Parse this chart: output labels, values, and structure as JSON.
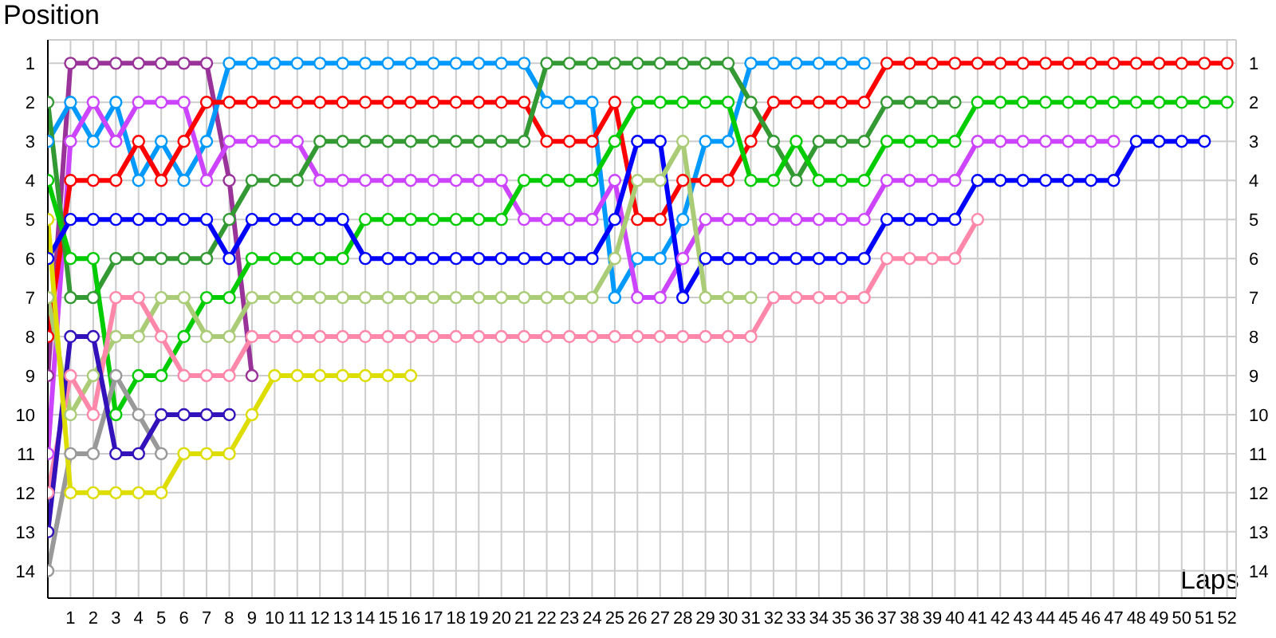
{
  "chart_data": {
    "type": "line",
    "xlabel": "Laps",
    "ylabel": "Position",
    "x": [
      0,
      1,
      2,
      3,
      4,
      5,
      6,
      7,
      8,
      9,
      10,
      11,
      12,
      13,
      14,
      15,
      16,
      17,
      18,
      19,
      20,
      21,
      22,
      23,
      24,
      25,
      26,
      27,
      28,
      29,
      30,
      31,
      32,
      33,
      34,
      35,
      36,
      37,
      38,
      39,
      40,
      41,
      42,
      43,
      44,
      45,
      46,
      47,
      48,
      49,
      50,
      51,
      52
    ],
    "xlim": [
      0,
      52.4
    ],
    "xticks": [
      1,
      2,
      3,
      4,
      5,
      6,
      7,
      8,
      9,
      10,
      11,
      12,
      13,
      14,
      15,
      16,
      17,
      18,
      19,
      20,
      21,
      22,
      23,
      24,
      25,
      26,
      27,
      28,
      29,
      30,
      31,
      32,
      33,
      34,
      35,
      36,
      37,
      38,
      39,
      40,
      41,
      42,
      43,
      44,
      45,
      46,
      47,
      48,
      49,
      50,
      51,
      52
    ],
    "ylim": [
      14.7,
      0.4
    ],
    "yticks": [
      1,
      2,
      3,
      4,
      5,
      6,
      7,
      8,
      9,
      10,
      11,
      12,
      13,
      14
    ],
    "y2lim": [
      14.7,
      0.4
    ],
    "y2ticks": [
      1,
      2,
      3,
      4,
      5,
      6,
      7,
      8,
      9,
      10,
      11,
      12,
      13,
      14
    ],
    "grid": true,
    "marker": "circle",
    "line_style": "solid",
    "series": [
      {
        "color": "#993399",
        "values": [
          9,
          1,
          1,
          1,
          1,
          1,
          1,
          1,
          4,
          9,
          null,
          null,
          null,
          null,
          null,
          null,
          null,
          null,
          null,
          null,
          null,
          null,
          null,
          null,
          null,
          null,
          null,
          null,
          null,
          null,
          null,
          null,
          null,
          null,
          null,
          null,
          null,
          null,
          null,
          null,
          null,
          null,
          null,
          null,
          null,
          null,
          null,
          null,
          null,
          null,
          null,
          null,
          null
        ]
      },
      {
        "color": "#0099ff",
        "values": [
          3,
          2,
          3,
          2,
          4,
          3,
          4,
          3,
          1,
          1,
          1,
          1,
          1,
          1,
          1,
          1,
          1,
          1,
          1,
          1,
          1,
          1,
          2,
          2,
          2,
          7,
          6,
          6,
          5,
          3,
          3,
          1,
          1,
          1,
          1,
          1,
          1,
          null,
          null,
          null,
          null,
          null,
          null,
          null,
          null,
          null,
          null,
          null,
          null,
          null,
          null,
          null,
          null
        ]
      },
      {
        "color": "#cc44ff",
        "values": [
          11,
          3,
          2,
          3,
          2,
          2,
          2,
          4,
          3,
          3,
          3,
          3,
          4,
          4,
          4,
          4,
          4,
          4,
          4,
          4,
          4,
          5,
          5,
          5,
          5,
          4,
          7,
          7,
          6,
          5,
          5,
          5,
          5,
          5,
          5,
          5,
          5,
          4,
          4,
          4,
          4,
          3,
          3,
          3,
          3,
          3,
          3,
          3,
          null,
          null,
          null,
          null,
          null
        ]
      },
      {
        "color": "#ff0000",
        "values": [
          8,
          4,
          4,
          4,
          3,
          4,
          3,
          2,
          2,
          2,
          2,
          2,
          2,
          2,
          2,
          2,
          2,
          2,
          2,
          2,
          2,
          2,
          3,
          3,
          3,
          2,
          5,
          5,
          4,
          4,
          4,
          3,
          2,
          2,
          2,
          2,
          2,
          1,
          1,
          1,
          1,
          1,
          1,
          1,
          1,
          1,
          1,
          1,
          1,
          1,
          1,
          1,
          1
        ]
      },
      {
        "color": "#339933",
        "values": [
          2,
          7,
          7,
          6,
          6,
          6,
          6,
          6,
          5,
          4,
          4,
          4,
          3,
          3,
          3,
          3,
          3,
          3,
          3,
          3,
          3,
          3,
          1,
          1,
          1,
          1,
          1,
          1,
          1,
          1,
          1,
          2,
          3,
          4,
          3,
          3,
          3,
          2,
          2,
          2,
          2,
          null,
          null,
          null,
          null,
          null,
          null,
          null,
          null,
          null,
          null,
          null,
          null
        ]
      },
      {
        "color": "#00cc00",
        "values": [
          4,
          6,
          6,
          10,
          9,
          9,
          8,
          7,
          7,
          6,
          6,
          6,
          6,
          6,
          5,
          5,
          5,
          5,
          5,
          5,
          5,
          4,
          4,
          4,
          4,
          3,
          2,
          2,
          2,
          2,
          2,
          4,
          4,
          3,
          4,
          4,
          4,
          3,
          3,
          3,
          3,
          2,
          2,
          2,
          2,
          2,
          2,
          2,
          2,
          2,
          2,
          2,
          2
        ]
      },
      {
        "color": "#0000ff",
        "values": [
          6,
          5,
          5,
          5,
          5,
          5,
          5,
          5,
          6,
          5,
          5,
          5,
          5,
          5,
          6,
          6,
          6,
          6,
          6,
          6,
          6,
          6,
          6,
          6,
          6,
          5,
          3,
          3,
          7,
          6,
          6,
          6,
          6,
          6,
          6,
          6,
          6,
          5,
          5,
          5,
          5,
          4,
          4,
          4,
          4,
          4,
          4,
          4,
          3,
          3,
          3,
          3,
          null
        ]
      },
      {
        "color": "#aacc77",
        "values": [
          7,
          10,
          9,
          8,
          8,
          7,
          7,
          8,
          8,
          7,
          7,
          7,
          7,
          7,
          7,
          7,
          7,
          7,
          7,
          7,
          7,
          7,
          7,
          7,
          7,
          6,
          4,
          4,
          3,
          7,
          7,
          7,
          null,
          null,
          null,
          null,
          null,
          null,
          null,
          null,
          null,
          null,
          null,
          null,
          null,
          null,
          null,
          null,
          null,
          null,
          null,
          null,
          null
        ]
      },
      {
        "color": "#ff88aa",
        "values": [
          12,
          9,
          10,
          7,
          7,
          8,
          9,
          9,
          9,
          8,
          8,
          8,
          8,
          8,
          8,
          8,
          8,
          8,
          8,
          8,
          8,
          8,
          8,
          8,
          8,
          8,
          8,
          8,
          8,
          8,
          8,
          8,
          7,
          7,
          7,
          7,
          7,
          6,
          6,
          6,
          6,
          5,
          null,
          null,
          null,
          null,
          null,
          null,
          null,
          null,
          null,
          null,
          null
        ]
      },
      {
        "color": "#999999",
        "values": [
          14,
          11,
          11,
          9,
          10,
          11,
          null,
          null,
          null,
          null,
          null,
          null,
          null,
          null,
          null,
          null,
          null,
          null,
          null,
          null,
          null,
          null,
          null,
          null,
          null,
          null,
          null,
          null,
          null,
          null,
          null,
          null,
          null,
          null,
          null,
          null,
          null,
          null,
          null,
          null,
          null,
          null,
          null,
          null,
          null,
          null,
          null,
          null,
          null,
          null,
          null,
          null,
          null
        ]
      },
      {
        "color": "#3311bb",
        "values": [
          13,
          8,
          8,
          11,
          11,
          10,
          10,
          10,
          10,
          null,
          null,
          null,
          null,
          null,
          null,
          null,
          null,
          null,
          null,
          null,
          null,
          null,
          null,
          null,
          null,
          null,
          null,
          null,
          null,
          null,
          null,
          null,
          null,
          null,
          null,
          null,
          null,
          null,
          null,
          null,
          null,
          null,
          null,
          null,
          null,
          null,
          null,
          null,
          null,
          null,
          null,
          null,
          null
        ]
      },
      {
        "color": "#dddd00",
        "values": [
          5,
          12,
          12,
          12,
          12,
          12,
          11,
          11,
          11,
          10,
          9,
          9,
          9,
          9,
          9,
          9,
          9,
          null,
          null,
          null,
          null,
          null,
          null,
          null,
          null,
          null,
          null,
          null,
          null,
          null,
          null,
          null,
          null,
          null,
          null,
          null,
          null,
          null,
          null,
          null,
          null,
          null,
          null,
          null,
          null,
          null,
          null,
          null,
          null,
          null,
          null,
          null,
          null
        ]
      }
    ]
  }
}
